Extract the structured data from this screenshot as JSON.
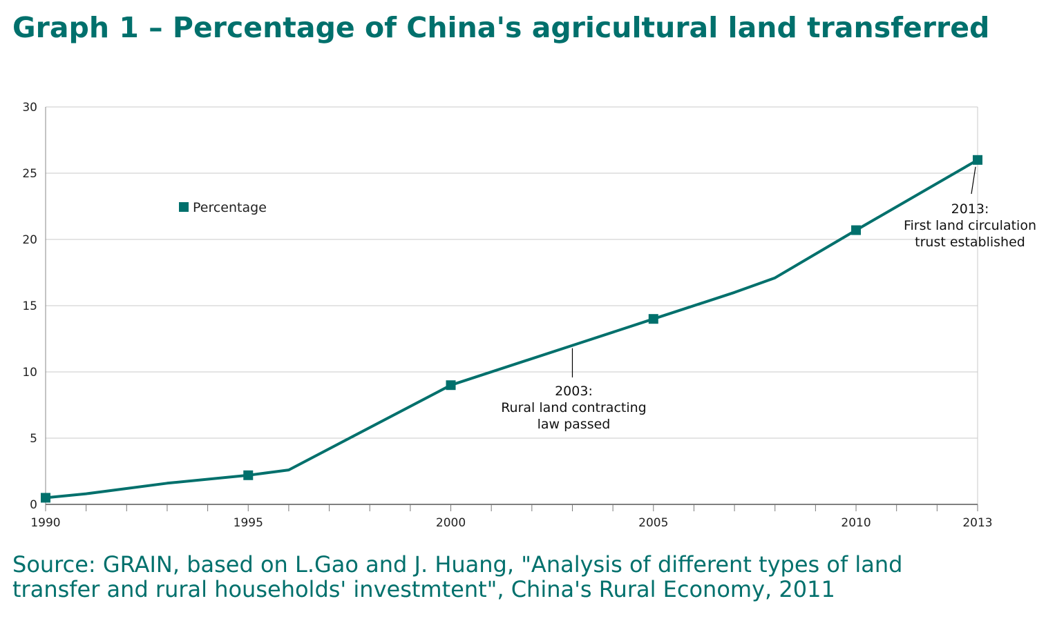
{
  "title": "Graph 1 – Percentage of China's agricultural land transferred",
  "source": {
    "line1": "Source: GRAIN, based on L.Gao and J. Huang, \"Analysis of different types of land",
    "line2": "transfer and rural households' investmtent\", China's Rural Economy, 2011"
  },
  "colors": {
    "series": "#00706c",
    "grid": "#c8c8c8",
    "text": "#000000"
  },
  "chart_data": {
    "type": "line",
    "title": "Graph 1 – Percentage of China's agricultural land transferred",
    "xlabel": "",
    "ylabel": "",
    "xlim": [
      1990,
      2013
    ],
    "ylim": [
      0,
      30
    ],
    "yticks": [
      0,
      5,
      10,
      15,
      20,
      25,
      30
    ],
    "xtick_labels": [
      1990,
      1995,
      2000,
      2005,
      2010,
      2013
    ],
    "grid": true,
    "legend": {
      "position": "top-left",
      "entries": [
        "Percentage"
      ]
    },
    "series": [
      {
        "name": "Percentage",
        "x": [
          1990,
          1991,
          1993,
          1995,
          1996,
          2000,
          2003,
          2005,
          2007,
          2008,
          2010,
          2013
        ],
        "y": [
          0.5,
          0.8,
          1.6,
          2.2,
          2.6,
          9.0,
          12.0,
          14.0,
          16.0,
          17.1,
          20.7,
          26.0
        ],
        "markers_at": [
          1990,
          1995,
          2000,
          2005,
          2010,
          2013
        ]
      }
    ],
    "annotations": [
      {
        "x": 2003,
        "y": 12.0,
        "lines": [
          "2003:",
          "Rural land contracting",
          "law passed"
        ]
      },
      {
        "x": 2013,
        "y": 26.0,
        "lines": [
          "2013:",
          "First land circulation",
          "trust established"
        ]
      }
    ]
  }
}
